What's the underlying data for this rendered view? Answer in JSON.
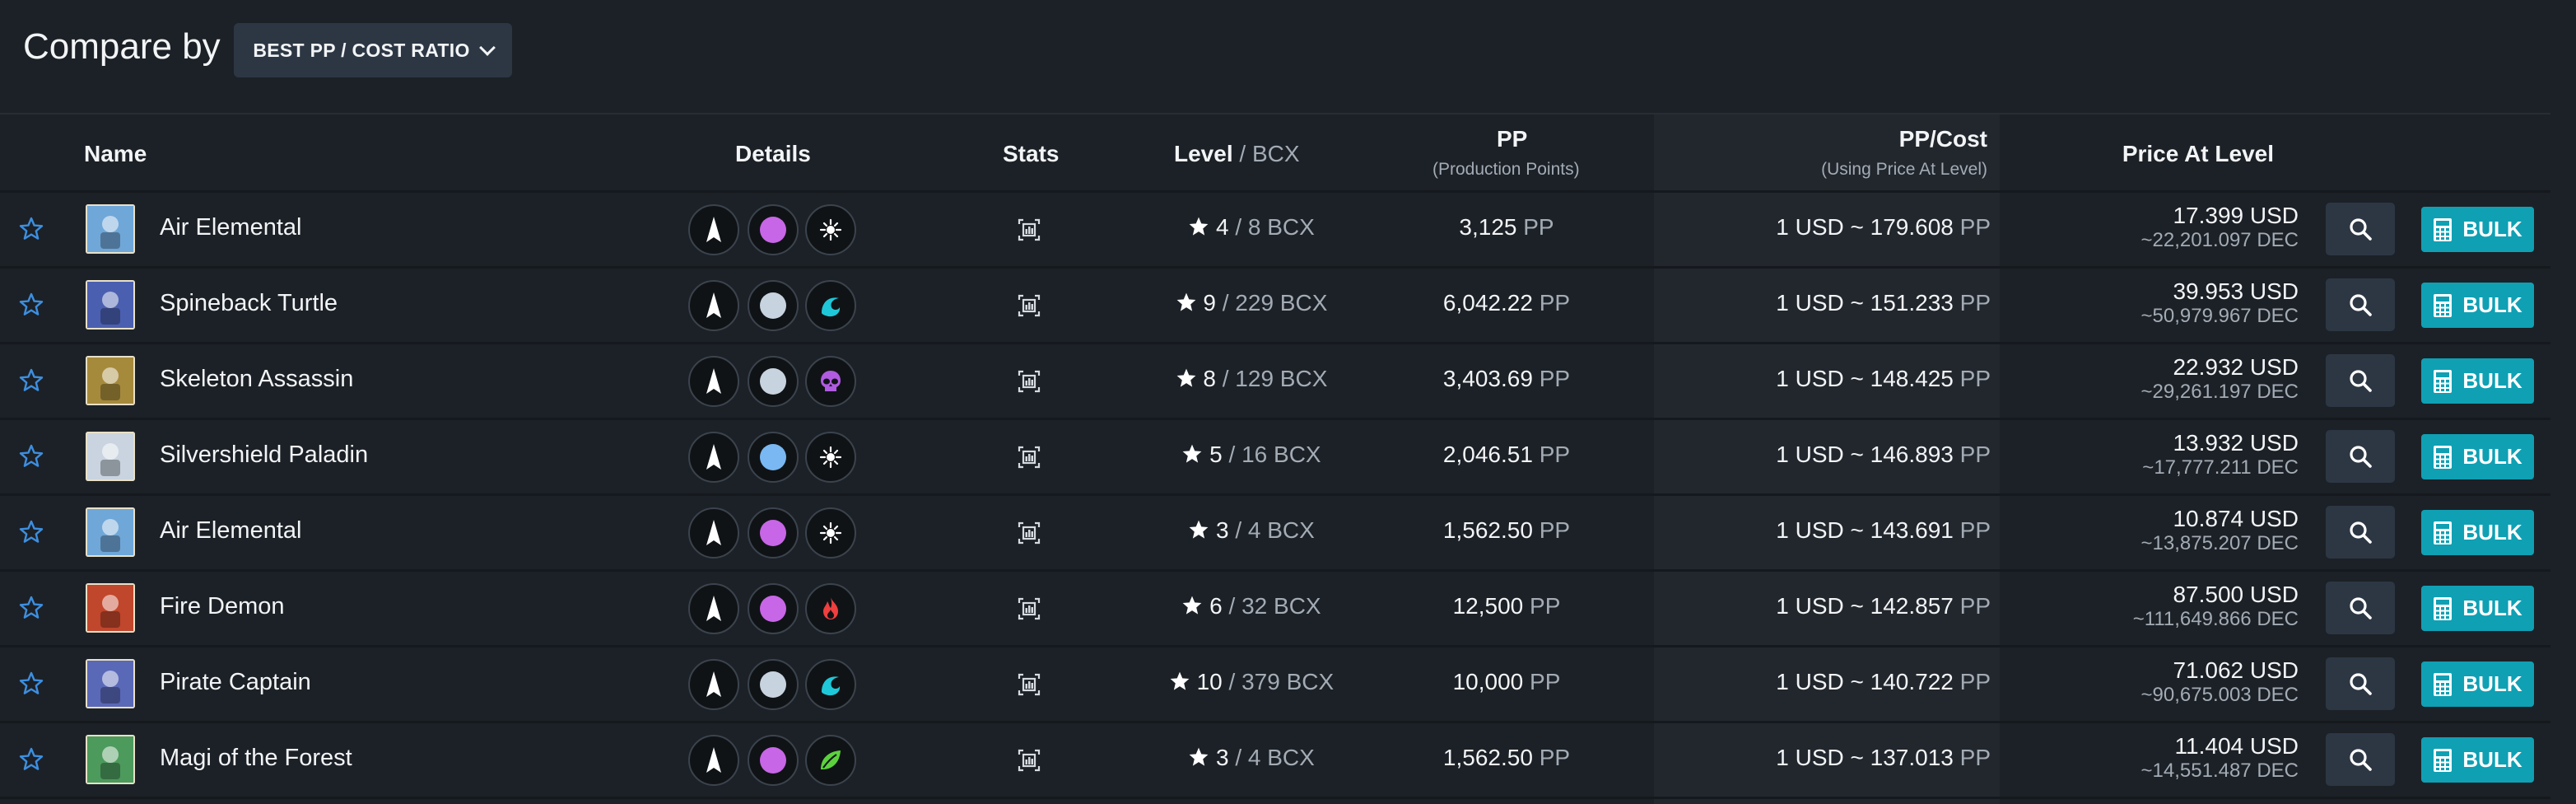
{
  "header": {
    "compare_label": "Compare by",
    "compare_value": "BEST PP / COST RATIO"
  },
  "columns": {
    "name": "Name",
    "details": "Details",
    "stats": "Stats",
    "level": "Level",
    "level_suffix": "/ BCX",
    "pp": "PP",
    "pp_sub": "(Production Points)",
    "ppcost": "PP/Cost",
    "ppcost_sub": "(Using Price At Level)",
    "price": "Price At Level"
  },
  "labels": {
    "bulk": "BULK"
  },
  "rows": [
    {
      "name": "Air Elemental",
      "element": "purple",
      "ability": "sun",
      "level": "4",
      "bcx": "/ 8 BCX",
      "pp": "3,125",
      "pp_unit": "PP",
      "ratio": "1 USD ~ 179.608",
      "ratio_unit": "PP",
      "usd": "17.399 USD",
      "dec": "~22,201.097 DEC",
      "art": "#6fa7d8"
    },
    {
      "name": "Spineback Turtle",
      "element": "gray",
      "ability": "wave",
      "level": "9",
      "bcx": "/ 229 BCX",
      "pp": "6,042.22",
      "pp_unit": "PP",
      "ratio": "1 USD ~ 151.233",
      "ratio_unit": "PP",
      "usd": "39.953 USD",
      "dec": "~50,979.967 DEC",
      "art": "#4b5fb0"
    },
    {
      "name": "Skeleton Assassin",
      "element": "gray",
      "ability": "skull",
      "level": "8",
      "bcx": "/ 129 BCX",
      "pp": "3,403.69",
      "pp_unit": "PP",
      "ratio": "1 USD ~ 148.425",
      "ratio_unit": "PP",
      "usd": "22.932 USD",
      "dec": "~29,261.197 DEC",
      "art": "#a68a3c"
    },
    {
      "name": "Silvershield Paladin",
      "element": "blue",
      "ability": "sun",
      "level": "5",
      "bcx": "/ 16 BCX",
      "pp": "2,046.51",
      "pp_unit": "PP",
      "ratio": "1 USD ~ 146.893",
      "ratio_unit": "PP",
      "usd": "13.932 USD",
      "dec": "~17,777.211 DEC",
      "art": "#c9d4e0"
    },
    {
      "name": "Air Elemental",
      "element": "purple",
      "ability": "sun",
      "level": "3",
      "bcx": "/ 4 BCX",
      "pp": "1,562.50",
      "pp_unit": "PP",
      "ratio": "1 USD ~ 143.691",
      "ratio_unit": "PP",
      "usd": "10.874 USD",
      "dec": "~13,875.207 DEC",
      "art": "#6fa7d8"
    },
    {
      "name": "Fire Demon",
      "element": "purple",
      "ability": "fire",
      "level": "6",
      "bcx": "/ 32 BCX",
      "pp": "12,500",
      "pp_unit": "PP",
      "ratio": "1 USD ~ 142.857",
      "ratio_unit": "PP",
      "usd": "87.500 USD",
      "dec": "~111,649.866 DEC",
      "art": "#c0462c"
    },
    {
      "name": "Pirate Captain",
      "element": "gray",
      "ability": "wave",
      "level": "10",
      "bcx": "/ 379 BCX",
      "pp": "10,000",
      "pp_unit": "PP",
      "ratio": "1 USD ~ 140.722",
      "ratio_unit": "PP",
      "usd": "71.062 USD",
      "dec": "~90,675.003 DEC",
      "art": "#5a68b8"
    },
    {
      "name": "Magi of the Forest",
      "element": "purple",
      "ability": "leaf",
      "level": "3",
      "bcx": "/ 4 BCX",
      "pp": "1,562.50",
      "pp_unit": "PP",
      "ratio": "1 USD ~ 137.013",
      "ratio_unit": "PP",
      "usd": "11.404 USD",
      "dec": "~14,551.487 DEC",
      "art": "#4c9a5c"
    }
  ],
  "colors": {
    "background": "#1c2127",
    "accent_button": "#0fa0b4",
    "fav_star": "#3d8fe0",
    "element_purple": "#c766e6",
    "element_gray": "#c7d3de",
    "element_blue": "#79b8f2",
    "ability_cyan": "#1ec8d8",
    "ability_skull": "#b05be0",
    "ability_fire": "#ef3f3f",
    "ability_leaf": "#5bd23d"
  }
}
